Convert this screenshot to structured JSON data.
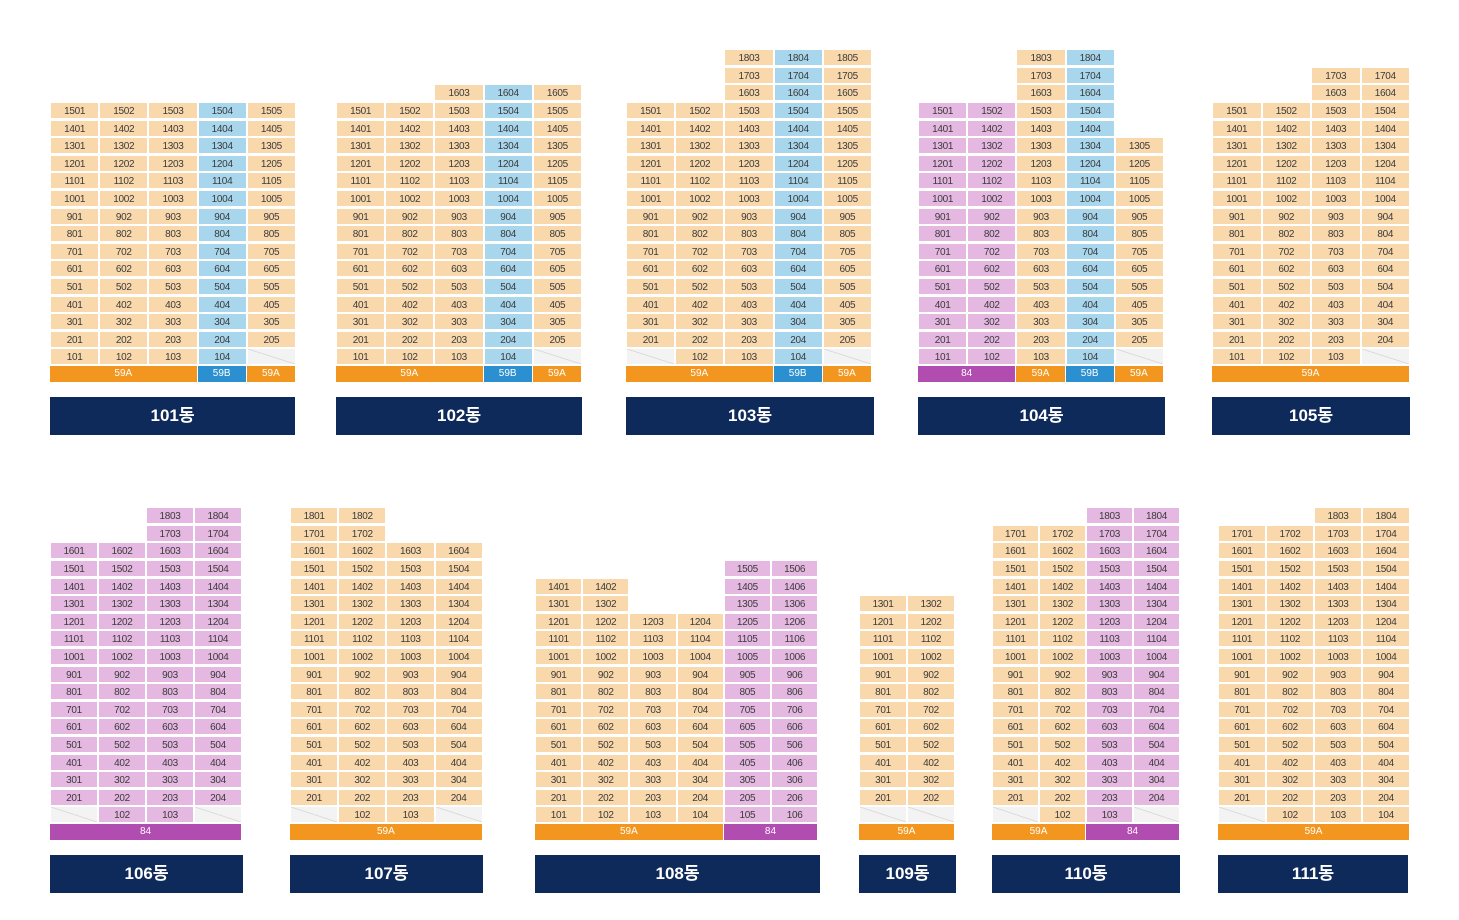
{
  "colors": {
    "59A": "#f9d8ac",
    "59B": "#a8d6ec",
    "84": "#e4b8e0",
    "label_bg": "#0e2a5a"
  },
  "buildings": [
    {
      "name": "101동",
      "columns": [
        {
          "line": "01",
          "type": "59A",
          "top": 15,
          "bottom": 1
        },
        {
          "line": "02",
          "type": "59A",
          "top": 15,
          "bottom": 1
        },
        {
          "line": "03",
          "type": "59A",
          "top": 15,
          "bottom": 1
        },
        {
          "line": "04",
          "type": "59B",
          "top": 15,
          "bottom": 1
        },
        {
          "line": "05",
          "type": "59A",
          "top": 15,
          "bottom": 2
        }
      ],
      "types": [
        {
          "label": "59A",
          "span": 3,
          "type": "59A"
        },
        {
          "label": "59B",
          "span": 1,
          "type": "59B"
        },
        {
          "label": "59A",
          "span": 1,
          "type": "59A"
        }
      ]
    },
    {
      "name": "102동",
      "columns": [
        {
          "line": "01",
          "type": "59A",
          "top": 15,
          "bottom": 1
        },
        {
          "line": "02",
          "type": "59A",
          "top": 15,
          "bottom": 1
        },
        {
          "line": "03",
          "type": "59A",
          "top": 16,
          "bottom": 1
        },
        {
          "line": "04",
          "type": "59B",
          "top": 16,
          "bottom": 1
        },
        {
          "line": "05",
          "type": "59A",
          "top": 16,
          "bottom": 2
        }
      ],
      "types": [
        {
          "label": "59A",
          "span": 3,
          "type": "59A"
        },
        {
          "label": "59B",
          "span": 1,
          "type": "59B"
        },
        {
          "label": "59A",
          "span": 1,
          "type": "59A"
        }
      ]
    },
    {
      "name": "103동",
      "columns": [
        {
          "line": "01",
          "type": "59A",
          "top": 15,
          "bottom": 2
        },
        {
          "line": "02",
          "type": "59A",
          "top": 15,
          "bottom": 1
        },
        {
          "line": "03",
          "type": "59A",
          "top": 18,
          "bottom": 1
        },
        {
          "line": "04",
          "type": "59B",
          "top": 18,
          "bottom": 1
        },
        {
          "line": "05",
          "type": "59A",
          "top": 18,
          "bottom": 2
        }
      ],
      "types": [
        {
          "label": "59A",
          "span": 3,
          "type": "59A"
        },
        {
          "label": "59B",
          "span": 1,
          "type": "59B"
        },
        {
          "label": "59A",
          "span": 1,
          "type": "59A"
        }
      ]
    },
    {
      "name": "104동",
      "columns": [
        {
          "line": "01",
          "type": "84",
          "top": 15,
          "bottom": 1
        },
        {
          "line": "02",
          "type": "84",
          "top": 15,
          "bottom": 1
        },
        {
          "line": "03",
          "type": "59A",
          "top": 18,
          "bottom": 1
        },
        {
          "line": "04",
          "type": "59B",
          "top": 18,
          "bottom": 1
        },
        {
          "line": "05",
          "type": "59A",
          "top": 13,
          "bottom": 2
        }
      ],
      "types": [
        {
          "label": "84",
          "span": 2,
          "type": "84"
        },
        {
          "label": "59A",
          "span": 1,
          "type": "59A"
        },
        {
          "label": "59B",
          "span": 1,
          "type": "59B"
        },
        {
          "label": "59A",
          "span": 1,
          "type": "59A"
        }
      ]
    },
    {
      "name": "105동",
      "columns": [
        {
          "line": "01",
          "type": "59A",
          "top": 15,
          "bottom": 1
        },
        {
          "line": "02",
          "type": "59A",
          "top": 15,
          "bottom": 1
        },
        {
          "line": "03",
          "type": "59A",
          "top": 17,
          "bottom": 1
        },
        {
          "line": "04",
          "type": "59A",
          "top": 17,
          "bottom": 2
        }
      ],
      "types": [
        {
          "label": "59A",
          "span": 4,
          "type": "59A"
        }
      ]
    },
    {
      "name": "106동",
      "columns": [
        {
          "line": "01",
          "type": "84",
          "top": 16,
          "bottom": 2
        },
        {
          "line": "02",
          "type": "84",
          "top": 16,
          "bottom": 1
        },
        {
          "line": "03",
          "type": "84",
          "top": 18,
          "bottom": 1
        },
        {
          "line": "04",
          "type": "84",
          "top": 18,
          "bottom": 2
        }
      ],
      "types": [
        {
          "label": "84",
          "span": 4,
          "type": "84"
        }
      ]
    },
    {
      "name": "107동",
      "columns": [
        {
          "line": "01",
          "type": "59A",
          "top": 18,
          "bottom": 2
        },
        {
          "line": "02",
          "type": "59A",
          "top": 18,
          "bottom": 1
        },
        {
          "line": "03",
          "type": "59A",
          "top": 16,
          "bottom": 1
        },
        {
          "line": "04",
          "type": "59A",
          "top": 16,
          "bottom": 2
        }
      ],
      "types": [
        {
          "label": "59A",
          "span": 4,
          "type": "59A"
        }
      ]
    },
    {
      "name": "108동",
      "columns": [
        {
          "line": "01",
          "type": "59A",
          "top": 14,
          "bottom": 1
        },
        {
          "line": "02",
          "type": "59A",
          "top": 14,
          "bottom": 1
        },
        {
          "line": "03",
          "type": "59A",
          "top": 12,
          "bottom": 1
        },
        {
          "line": "04",
          "type": "59A",
          "top": 12,
          "bottom": 1
        },
        {
          "line": "05",
          "type": "84",
          "top": 15,
          "bottom": 1
        },
        {
          "line": "06",
          "type": "84",
          "top": 15,
          "bottom": 1
        }
      ],
      "types": [
        {
          "label": "59A",
          "span": 4,
          "type": "59A"
        },
        {
          "label": "84",
          "span": 2,
          "type": "84"
        }
      ]
    },
    {
      "name": "109동",
      "columns": [
        {
          "line": "01",
          "type": "59A",
          "top": 13,
          "bottom": 2
        },
        {
          "line": "02",
          "type": "59A",
          "top": 13,
          "bottom": 2
        }
      ],
      "types": [
        {
          "label": "59A",
          "span": 2,
          "type": "59A"
        }
      ]
    },
    {
      "name": "110동",
      "columns": [
        {
          "line": "01",
          "type": "59A",
          "top": 17,
          "bottom": 2
        },
        {
          "line": "02",
          "type": "59A",
          "top": 17,
          "bottom": 1
        },
        {
          "line": "03",
          "type": "84",
          "top": 18,
          "bottom": 1
        },
        {
          "line": "04",
          "type": "84",
          "top": 18,
          "bottom": 2
        }
      ],
      "types": [
        {
          "label": "59A",
          "span": 2,
          "type": "59A"
        },
        {
          "label": "84",
          "span": 2,
          "type": "84"
        }
      ]
    },
    {
      "name": "111동",
      "columns": [
        {
          "line": "01",
          "type": "59A",
          "top": 17,
          "bottom": 2
        },
        {
          "line": "02",
          "type": "59A",
          "top": 17,
          "bottom": 1
        },
        {
          "line": "03",
          "type": "59A",
          "top": 18,
          "bottom": 1
        },
        {
          "line": "04",
          "type": "59A",
          "top": 18,
          "bottom": 1
        }
      ],
      "types": [
        {
          "label": "59A",
          "span": 4,
          "type": "59A"
        }
      ]
    }
  ]
}
